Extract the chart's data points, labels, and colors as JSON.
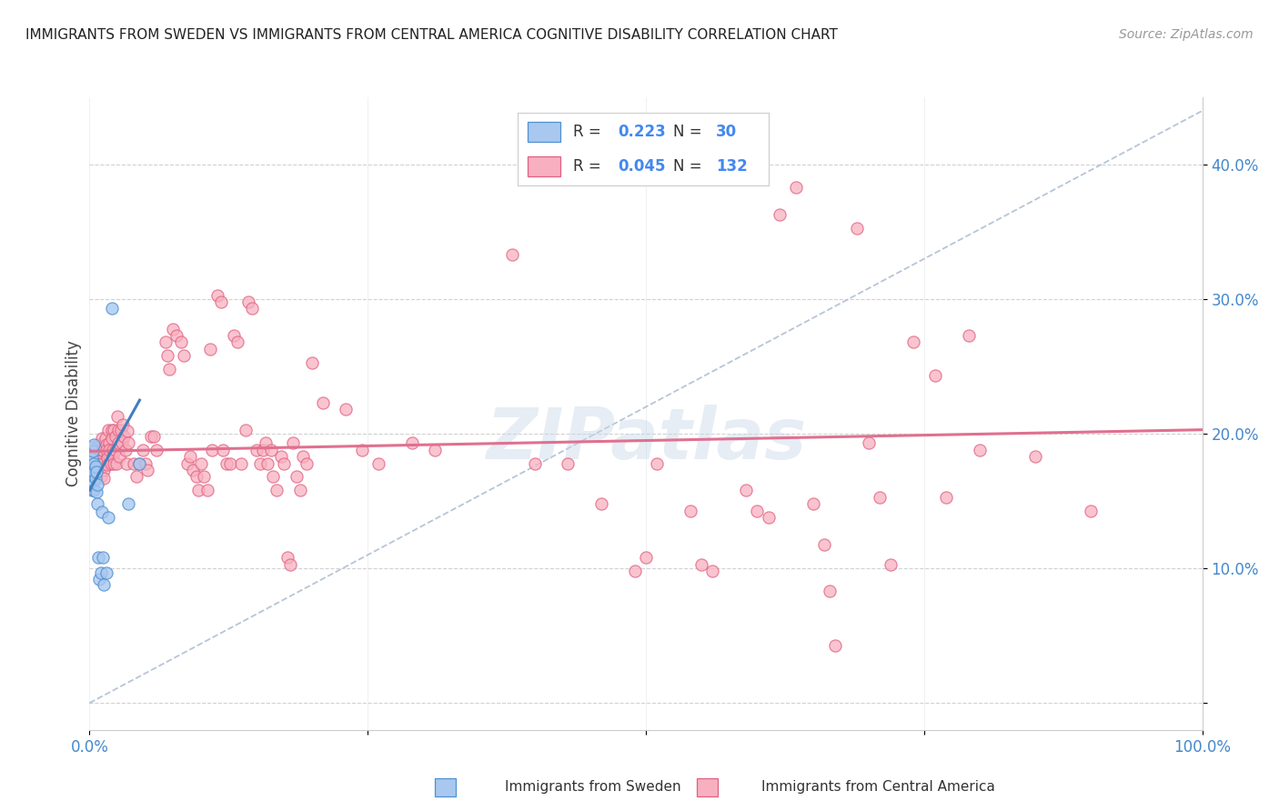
{
  "title": "IMMIGRANTS FROM SWEDEN VS IMMIGRANTS FROM CENTRAL AMERICA COGNITIVE DISABILITY CORRELATION CHART",
  "source": "Source: ZipAtlas.com",
  "ylabel": "Cognitive Disability",
  "yticks": [
    0.0,
    0.1,
    0.2,
    0.3,
    0.4
  ],
  "ytick_labels": [
    "",
    "10.0%",
    "20.0%",
    "30.0%",
    "40.0%"
  ],
  "xticks": [
    0.0,
    0.25,
    0.5,
    0.75,
    1.0
  ],
  "xtick_labels": [
    "0.0%",
    "",
    "",
    "",
    "100.0%"
  ],
  "xlim": [
    0.0,
    1.0
  ],
  "ylim": [
    -0.02,
    0.45
  ],
  "sweden_fill_color": "#a8c8f0",
  "sweden_edge_color": "#5090d0",
  "ca_fill_color": "#f8b0c0",
  "ca_edge_color": "#e06080",
  "sweden_line_color": "#4080c0",
  "ca_line_color": "#e07090",
  "diagonal_color": "#aabbd0",
  "legend_R_sweden": "0.223",
  "legend_N_sweden": "30",
  "legend_R_central": "0.045",
  "legend_N_central": "132",
  "watermark": "ZIPatlas",
  "sweden_scatter": [
    [
      0.0,
      0.185
    ],
    [
      0.001,
      0.19
    ],
    [
      0.001,
      0.175
    ],
    [
      0.002,
      0.182
    ],
    [
      0.002,
      0.17
    ],
    [
      0.002,
      0.158
    ],
    [
      0.003,
      0.187
    ],
    [
      0.003,
      0.168
    ],
    [
      0.003,
      0.162
    ],
    [
      0.004,
      0.192
    ],
    [
      0.004,
      0.178
    ],
    [
      0.004,
      0.172
    ],
    [
      0.004,
      0.158
    ],
    [
      0.005,
      0.176
    ],
    [
      0.005,
      0.167
    ],
    [
      0.006,
      0.172
    ],
    [
      0.006,
      0.157
    ],
    [
      0.007,
      0.162
    ],
    [
      0.007,
      0.148
    ],
    [
      0.008,
      0.108
    ],
    [
      0.009,
      0.092
    ],
    [
      0.01,
      0.097
    ],
    [
      0.011,
      0.142
    ],
    [
      0.012,
      0.108
    ],
    [
      0.013,
      0.088
    ],
    [
      0.015,
      0.097
    ],
    [
      0.017,
      0.138
    ],
    [
      0.02,
      0.293
    ],
    [
      0.035,
      0.148
    ],
    [
      0.045,
      0.178
    ]
  ],
  "ca_scatter": [
    [
      0.008,
      0.192
    ],
    [
      0.009,
      0.185
    ],
    [
      0.009,
      0.178
    ],
    [
      0.01,
      0.188
    ],
    [
      0.01,
      0.175
    ],
    [
      0.01,
      0.168
    ],
    [
      0.011,
      0.197
    ],
    [
      0.012,
      0.188
    ],
    [
      0.012,
      0.178
    ],
    [
      0.013,
      0.173
    ],
    [
      0.013,
      0.167
    ],
    [
      0.014,
      0.197
    ],
    [
      0.015,
      0.192
    ],
    [
      0.015,
      0.188
    ],
    [
      0.016,
      0.182
    ],
    [
      0.016,
      0.177
    ],
    [
      0.017,
      0.203
    ],
    [
      0.018,
      0.193
    ],
    [
      0.018,
      0.188
    ],
    [
      0.019,
      0.178
    ],
    [
      0.02,
      0.203
    ],
    [
      0.02,
      0.197
    ],
    [
      0.021,
      0.188
    ],
    [
      0.021,
      0.183
    ],
    [
      0.022,
      0.178
    ],
    [
      0.022,
      0.203
    ],
    [
      0.023,
      0.198
    ],
    [
      0.023,
      0.188
    ],
    [
      0.024,
      0.178
    ],
    [
      0.025,
      0.213
    ],
    [
      0.026,
      0.203
    ],
    [
      0.026,
      0.193
    ],
    [
      0.027,
      0.183
    ],
    [
      0.028,
      0.203
    ],
    [
      0.029,
      0.193
    ],
    [
      0.03,
      0.207
    ],
    [
      0.031,
      0.198
    ],
    [
      0.032,
      0.188
    ],
    [
      0.033,
      0.178
    ],
    [
      0.034,
      0.202
    ],
    [
      0.035,
      0.193
    ],
    [
      0.04,
      0.178
    ],
    [
      0.042,
      0.168
    ],
    [
      0.045,
      0.178
    ],
    [
      0.048,
      0.188
    ],
    [
      0.05,
      0.178
    ],
    [
      0.052,
      0.173
    ],
    [
      0.055,
      0.198
    ],
    [
      0.058,
      0.198
    ],
    [
      0.06,
      0.188
    ],
    [
      0.068,
      0.268
    ],
    [
      0.07,
      0.258
    ],
    [
      0.072,
      0.248
    ],
    [
      0.075,
      0.278
    ],
    [
      0.078,
      0.273
    ],
    [
      0.082,
      0.268
    ],
    [
      0.085,
      0.258
    ],
    [
      0.088,
      0.178
    ],
    [
      0.09,
      0.183
    ],
    [
      0.093,
      0.173
    ],
    [
      0.096,
      0.168
    ],
    [
      0.098,
      0.158
    ],
    [
      0.1,
      0.178
    ],
    [
      0.103,
      0.168
    ],
    [
      0.106,
      0.158
    ],
    [
      0.108,
      0.263
    ],
    [
      0.11,
      0.188
    ],
    [
      0.115,
      0.303
    ],
    [
      0.118,
      0.298
    ],
    [
      0.12,
      0.188
    ],
    [
      0.123,
      0.178
    ],
    [
      0.126,
      0.178
    ],
    [
      0.13,
      0.273
    ],
    [
      0.133,
      0.268
    ],
    [
      0.136,
      0.178
    ],
    [
      0.14,
      0.203
    ],
    [
      0.143,
      0.298
    ],
    [
      0.146,
      0.293
    ],
    [
      0.15,
      0.188
    ],
    [
      0.153,
      0.178
    ],
    [
      0.156,
      0.188
    ],
    [
      0.158,
      0.193
    ],
    [
      0.16,
      0.178
    ],
    [
      0.163,
      0.188
    ],
    [
      0.165,
      0.168
    ],
    [
      0.168,
      0.158
    ],
    [
      0.172,
      0.183
    ],
    [
      0.175,
      0.178
    ],
    [
      0.178,
      0.108
    ],
    [
      0.18,
      0.103
    ],
    [
      0.183,
      0.193
    ],
    [
      0.186,
      0.168
    ],
    [
      0.189,
      0.158
    ],
    [
      0.192,
      0.183
    ],
    [
      0.195,
      0.178
    ],
    [
      0.2,
      0.253
    ],
    [
      0.21,
      0.223
    ],
    [
      0.23,
      0.218
    ],
    [
      0.245,
      0.188
    ],
    [
      0.26,
      0.178
    ],
    [
      0.29,
      0.193
    ],
    [
      0.31,
      0.188
    ],
    [
      0.38,
      0.333
    ],
    [
      0.4,
      0.178
    ],
    [
      0.43,
      0.178
    ],
    [
      0.46,
      0.148
    ],
    [
      0.49,
      0.098
    ],
    [
      0.5,
      0.108
    ],
    [
      0.51,
      0.178
    ],
    [
      0.54,
      0.143
    ],
    [
      0.55,
      0.103
    ],
    [
      0.56,
      0.098
    ],
    [
      0.59,
      0.158
    ],
    [
      0.6,
      0.143
    ],
    [
      0.61,
      0.138
    ],
    [
      0.62,
      0.363
    ],
    [
      0.635,
      0.383
    ],
    [
      0.65,
      0.148
    ],
    [
      0.66,
      0.118
    ],
    [
      0.665,
      0.083
    ],
    [
      0.67,
      0.043
    ],
    [
      0.69,
      0.353
    ],
    [
      0.7,
      0.193
    ],
    [
      0.71,
      0.153
    ],
    [
      0.72,
      0.103
    ],
    [
      0.74,
      0.268
    ],
    [
      0.76,
      0.243
    ],
    [
      0.77,
      0.153
    ],
    [
      0.79,
      0.273
    ],
    [
      0.8,
      0.188
    ],
    [
      0.85,
      0.183
    ],
    [
      0.9,
      0.143
    ]
  ],
  "sweden_trend": [
    0.0,
    0.045,
    0.158,
    0.225
  ],
  "ca_trend": [
    0.0,
    1.0,
    0.187,
    0.203
  ],
  "diagonal": [
    0.0,
    1.0,
    0.0,
    0.44
  ]
}
